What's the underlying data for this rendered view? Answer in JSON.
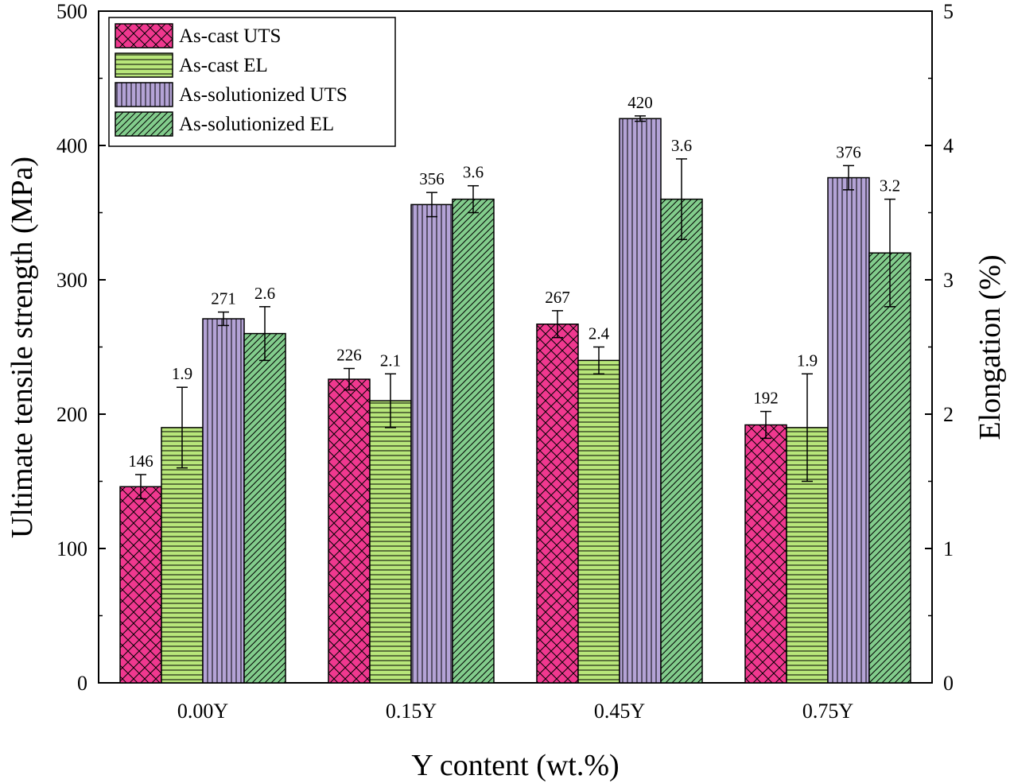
{
  "chart_data": {
    "type": "bar",
    "xlabel": "Y content (wt.%)",
    "ylabel": "Ultimate tensile strength (MPa)",
    "y2label": "Elongation (%)",
    "ylim": [
      0,
      500
    ],
    "y2lim": [
      0,
      5
    ],
    "yticks": [
      "0",
      "100",
      "200",
      "300",
      "400",
      "500"
    ],
    "y2ticks": [
      "0",
      "1",
      "2",
      "3",
      "4",
      "5"
    ],
    "categories": [
      "0.00Y",
      "0.15Y",
      "0.45Y",
      "0.75Y"
    ],
    "legend_position": "top-left",
    "series": [
      {
        "name": "As-cast UTS",
        "axis": "left",
        "color": "#f0388f",
        "pattern": "crosshatch",
        "values": [
          146,
          226,
          267,
          192
        ],
        "errors": [
          9,
          8,
          10,
          10
        ],
        "labels": [
          "146",
          "226",
          "267",
          "192"
        ]
      },
      {
        "name": "As-cast EL",
        "axis": "right",
        "color": "#b8e67a",
        "pattern": "horizontal",
        "values": [
          1.9,
          2.1,
          2.4,
          1.9
        ],
        "errors": [
          0.3,
          0.2,
          0.1,
          0.4
        ],
        "labels": [
          "1.9",
          "2.1",
          "2.4",
          "1.9"
        ]
      },
      {
        "name": "As-solutionized UTS",
        "axis": "left",
        "color": "#b4a3d6",
        "pattern": "vertical",
        "values": [
          271,
          356,
          420,
          376
        ],
        "errors": [
          5,
          9,
          2,
          9
        ],
        "labels": [
          "271",
          "356",
          "420",
          "376"
        ]
      },
      {
        "name": "As-solutionized EL",
        "axis": "right",
        "color": "#82cc8c",
        "pattern": "diagonal",
        "values": [
          2.6,
          3.6,
          3.6,
          3.2
        ],
        "errors": [
          0.2,
          0.1,
          0.3,
          0.4
        ],
        "labels": [
          "2.6",
          "3.6",
          "3.6",
          "3.2"
        ]
      }
    ]
  }
}
